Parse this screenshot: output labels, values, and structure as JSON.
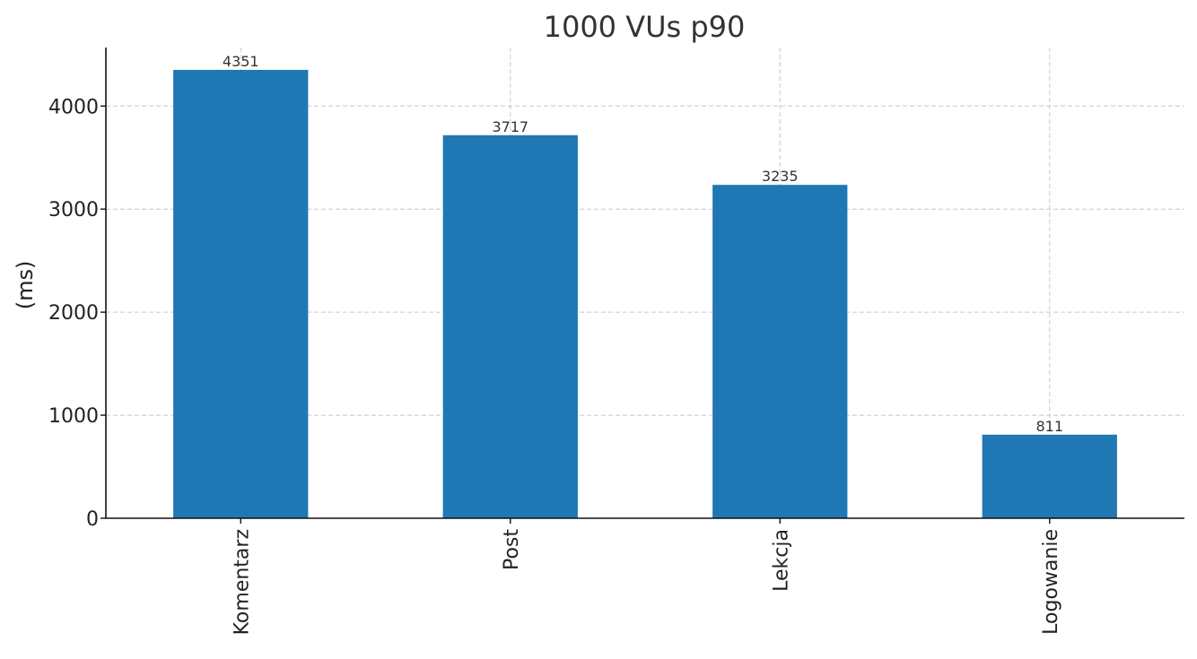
{
  "chart_data": {
    "type": "bar",
    "title": "1000 VUs p90",
    "xlabel": "",
    "ylabel": "(ms)",
    "categories": [
      "Komentarz",
      "Post",
      "Lekcja",
      "Logowanie"
    ],
    "values": [
      4351,
      3717,
      3235,
      811
    ],
    "data_labels": [
      "4351",
      "3717",
      "3235",
      "811"
    ],
    "yticks": [
      0,
      1000,
      2000,
      3000,
      4000
    ],
    "ytick_labels": [
      "0",
      "1000",
      "2000",
      "3000",
      "4000"
    ],
    "ylim": [
      0,
      4568
    ],
    "grid": true,
    "bar_color": "#1f77b4",
    "grid_color": "#c8c8c8"
  }
}
